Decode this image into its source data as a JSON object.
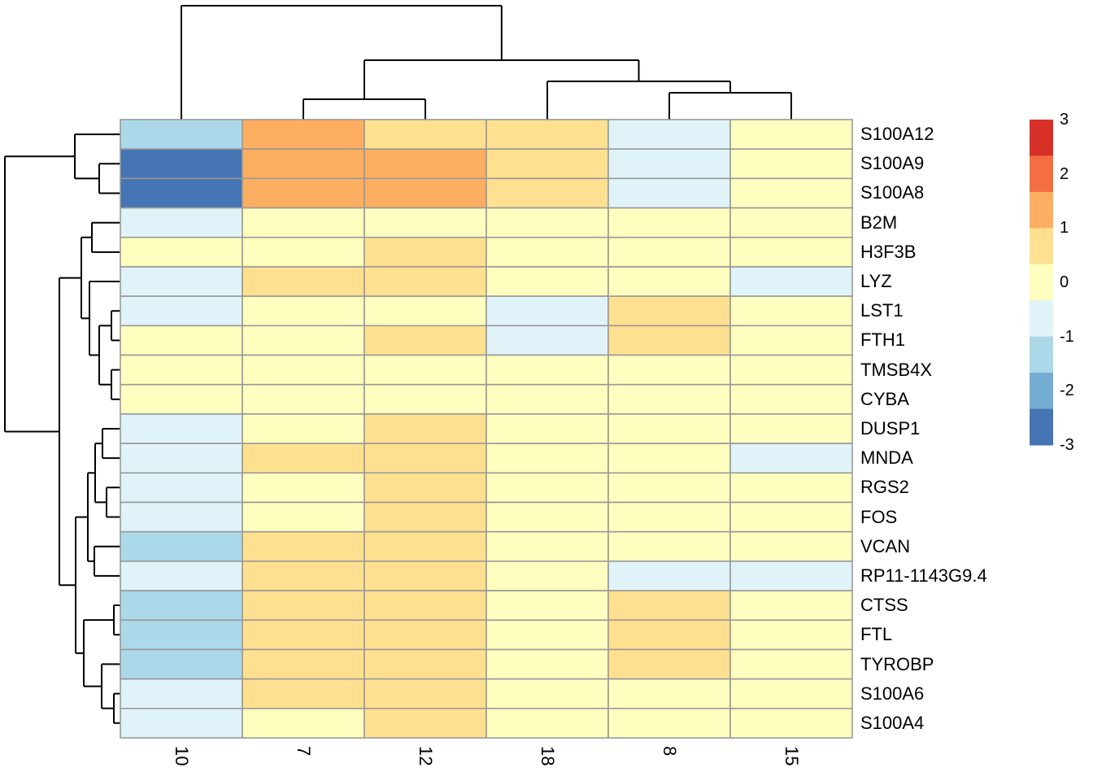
{
  "chart_data": {
    "type": "heatmap",
    "title": "",
    "columns": [
      "10",
      "7",
      "12",
      "18",
      "8",
      "15"
    ],
    "rows": [
      "S100A12",
      "S100A9",
      "S100A8",
      "B2M",
      "H3F3B",
      "LYZ",
      "LST1",
      "FTH1",
      "TMSB4X",
      "CYBA",
      "DUSP1",
      "MNDA",
      "RGS2",
      "FOS",
      "VCAN",
      "RP11-1143G9.4",
      "CTSS",
      "FTL",
      "TYROBP",
      "S100A6",
      "S100A4"
    ],
    "values": [
      [
        -1.3,
        1.3,
        0.7,
        0.7,
        -0.7,
        0.0
      ],
      [
        -2.7,
        1.3,
        1.3,
        0.7,
        -0.7,
        0.0
      ],
      [
        -2.7,
        1.3,
        1.3,
        0.7,
        -0.7,
        0.0
      ],
      [
        -0.7,
        0.0,
        0.0,
        0.0,
        0.0,
        0.0
      ],
      [
        0.0,
        0.0,
        0.7,
        0.0,
        0.0,
        0.0
      ],
      [
        -0.7,
        0.7,
        0.7,
        0.0,
        0.0,
        -0.7
      ],
      [
        -0.7,
        0.0,
        0.0,
        -0.7,
        0.7,
        0.0
      ],
      [
        0.0,
        0.0,
        0.7,
        -0.7,
        0.7,
        0.0
      ],
      [
        0.0,
        0.0,
        0.0,
        0.0,
        0.0,
        0.0
      ],
      [
        0.0,
        0.0,
        0.0,
        0.0,
        0.0,
        0.0
      ],
      [
        -0.7,
        0.0,
        0.7,
        0.0,
        0.0,
        0.0
      ],
      [
        -0.7,
        0.7,
        0.7,
        0.0,
        0.0,
        -0.7
      ],
      [
        -0.7,
        0.0,
        0.7,
        0.0,
        0.0,
        0.0
      ],
      [
        -0.7,
        0.0,
        0.7,
        0.0,
        0.0,
        0.0
      ],
      [
        -1.3,
        0.7,
        0.7,
        0.0,
        0.0,
        0.0
      ],
      [
        -0.7,
        0.7,
        0.7,
        0.0,
        -0.7,
        -0.7
      ],
      [
        -1.3,
        0.7,
        0.7,
        0.0,
        0.7,
        0.0
      ],
      [
        -1.3,
        0.7,
        0.7,
        0.0,
        0.7,
        0.0
      ],
      [
        -1.3,
        0.7,
        0.7,
        0.0,
        0.7,
        0.0
      ],
      [
        -0.7,
        0.7,
        0.7,
        0.0,
        0.0,
        0.0
      ],
      [
        -0.7,
        0.0,
        0.7,
        0.0,
        0.0,
        0.0
      ]
    ],
    "palette": [
      {
        "from": -3.0,
        "to": -2.333,
        "color": "#4575b4"
      },
      {
        "from": -2.333,
        "to": -1.667,
        "color": "#74add1"
      },
      {
        "from": -1.667,
        "to": -1.0,
        "color": "#abd9e9"
      },
      {
        "from": -1.0,
        "to": -0.333,
        "color": "#e0f3f8"
      },
      {
        "from": -0.333,
        "to": 0.333,
        "color": "#ffffbf"
      },
      {
        "from": 0.333,
        "to": 1.0,
        "color": "#fee090"
      },
      {
        "from": 1.0,
        "to": 1.667,
        "color": "#fdae61"
      },
      {
        "from": 1.667,
        "to": 2.333,
        "color": "#f46d43"
      },
      {
        "from": 2.333,
        "to": 3.0,
        "color": "#d73027"
      }
    ],
    "legend": {
      "ticks": [
        "3",
        "2",
        "1",
        "0",
        "-1",
        "-2",
        "-3"
      ],
      "max": 3,
      "min": -3,
      "colors_top_to_bottom": [
        "#d73027",
        "#f46d43",
        "#fdae61",
        "#fee090",
        "#ffffbf",
        "#e0f3f8",
        "#abd9e9",
        "#74add1",
        "#4575b4"
      ]
    },
    "grid_color": "#999999",
    "dendrogram_color": "#000000",
    "row_dendrogram_segments": [
      [
        122,
        201.3,
        122,
        237.5
      ],
      [
        122,
        201.3,
        148,
        201.3
      ],
      [
        122,
        237.5,
        148,
        237.5
      ],
      [
        92,
        165.1,
        92,
        219.4
      ],
      [
        92,
        165.1,
        148,
        165.1
      ],
      [
        92,
        219.4,
        122,
        219.4
      ],
      [
        113,
        273.7,
        113,
        309.9
      ],
      [
        113,
        273.7,
        148,
        273.7
      ],
      [
        113,
        309.9,
        148,
        309.9
      ],
      [
        137,
        382.2,
        137,
        418.4
      ],
      [
        137,
        382.2,
        148,
        382.2
      ],
      [
        137,
        418.4,
        148,
        418.4
      ],
      [
        137,
        454.6,
        137,
        490.8
      ],
      [
        137,
        454.6,
        148,
        454.6
      ],
      [
        137,
        490.8,
        148,
        490.8
      ],
      [
        122,
        400.3,
        122,
        472.7
      ],
      [
        122,
        400.3,
        137,
        400.3
      ],
      [
        122,
        472.7,
        137,
        472.7
      ],
      [
        110,
        346.0,
        110,
        436.5
      ],
      [
        110,
        346.0,
        148,
        346.0
      ],
      [
        110,
        436.5,
        122,
        436.5
      ],
      [
        100,
        291.8,
        100,
        391.3
      ],
      [
        100,
        291.8,
        113,
        291.8
      ],
      [
        100,
        391.3,
        110,
        391.3
      ],
      [
        126,
        527.0,
        126,
        563.1
      ],
      [
        126,
        527.0,
        148,
        527.0
      ],
      [
        126,
        563.1,
        148,
        563.1
      ],
      [
        131,
        599.3,
        131,
        635.5
      ],
      [
        131,
        599.3,
        148,
        599.3
      ],
      [
        131,
        635.5,
        148,
        635.5
      ],
      [
        117,
        545.1,
        117,
        617.4
      ],
      [
        117,
        545.1,
        126,
        545.1
      ],
      [
        117,
        617.4,
        131,
        617.4
      ],
      [
        116,
        671.7,
        116,
        707.9
      ],
      [
        116,
        671.7,
        148,
        671.7
      ],
      [
        116,
        707.9,
        148,
        707.9
      ],
      [
        108,
        581.3,
        108,
        689.8
      ],
      [
        108,
        581.3,
        117,
        581.3
      ],
      [
        108,
        689.8,
        116,
        689.8
      ],
      [
        140,
        744.0,
        140,
        780.2
      ],
      [
        140,
        744.0,
        148,
        744.0
      ],
      [
        140,
        780.2,
        148,
        780.2
      ],
      [
        140,
        852.6,
        140,
        888.8
      ],
      [
        140,
        852.6,
        148,
        852.6
      ],
      [
        140,
        888.8,
        148,
        888.8
      ],
      [
        125,
        816.4,
        125,
        870.7
      ],
      [
        125,
        816.4,
        148,
        816.4
      ],
      [
        125,
        870.7,
        140,
        870.7
      ],
      [
        103,
        762.1,
        103,
        843.6
      ],
      [
        103,
        762.1,
        140,
        762.1
      ],
      [
        103,
        843.6,
        125,
        843.6
      ],
      [
        93,
        635.6,
        93,
        802.9
      ],
      [
        93,
        635.6,
        108,
        635.6
      ],
      [
        93,
        802.9,
        103,
        802.9
      ],
      [
        73,
        341.6,
        73,
        719.3
      ],
      [
        73,
        341.6,
        100,
        341.6
      ],
      [
        73,
        719.3,
        93,
        719.3
      ],
      [
        6,
        192.3,
        6,
        530.5
      ],
      [
        6,
        192.3,
        92,
        192.3
      ],
      [
        6,
        530.5,
        73,
        530.5
      ]
    ],
    "col_dendrogram_segments": [
      [
        373,
        122,
        523,
        122
      ],
      [
        373,
        122,
        373,
        147
      ],
      [
        523,
        122,
        523,
        147
      ],
      [
        823,
        114,
        973,
        114
      ],
      [
        823,
        114,
        823,
        147
      ],
      [
        973,
        114,
        973,
        147
      ],
      [
        673,
        100,
        898,
        100
      ],
      [
        673,
        100,
        673,
        147
      ],
      [
        898,
        100,
        898,
        114
      ],
      [
        448,
        74,
        785.5,
        74
      ],
      [
        448,
        74,
        448,
        122
      ],
      [
        785.5,
        74,
        785.5,
        100
      ],
      [
        223,
        7,
        616.8,
        7
      ],
      [
        223,
        7,
        223,
        147
      ],
      [
        616.8,
        7,
        616.8,
        74
      ]
    ]
  }
}
